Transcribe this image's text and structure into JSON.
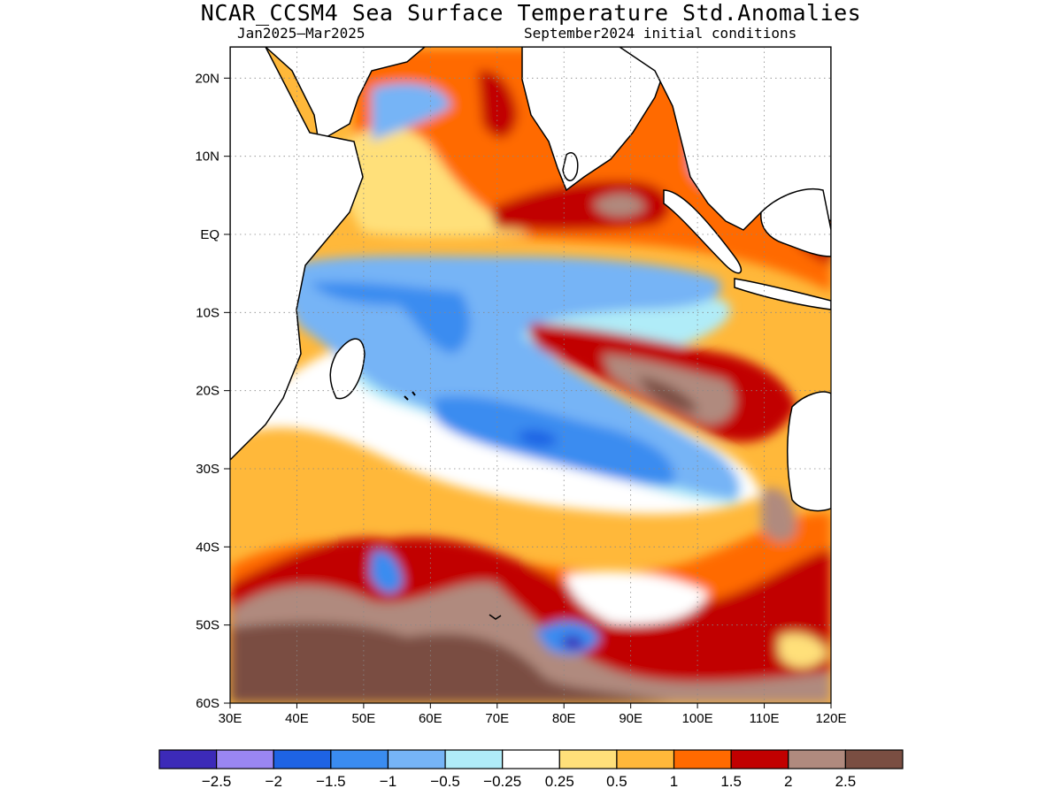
{
  "header": {
    "title": "NCAR_CCSM4 Sea Surface Temperature Std.Anomalies",
    "period": "Jan2025–Mar2025",
    "init": "September2024 initial conditions"
  },
  "map": {
    "lon_range": [
      30,
      120
    ],
    "lat_range": [
      -60,
      24
    ],
    "lat_ticks": [
      {
        "value": 20,
        "label": "20N"
      },
      {
        "value": 10,
        "label": "10N"
      },
      {
        "value": 0,
        "label": "EQ"
      },
      {
        "value": -10,
        "label": "10S"
      },
      {
        "value": -20,
        "label": "20S"
      },
      {
        "value": -30,
        "label": "30S"
      },
      {
        "value": -40,
        "label": "40S"
      },
      {
        "value": -50,
        "label": "50S"
      },
      {
        "value": -60,
        "label": "60S"
      }
    ],
    "lon_ticks": [
      {
        "value": 30,
        "label": "30E"
      },
      {
        "value": 40,
        "label": "40E"
      },
      {
        "value": 50,
        "label": "50E"
      },
      {
        "value": 60,
        "label": "60E"
      },
      {
        "value": 70,
        "label": "70E"
      },
      {
        "value": 80,
        "label": "80E"
      },
      {
        "value": 90,
        "label": "90E"
      },
      {
        "value": 100,
        "label": "100E"
      },
      {
        "value": 110,
        "label": "110E"
      },
      {
        "value": 120,
        "label": "120E"
      }
    ],
    "grid": "dotted",
    "land_color": "#ffffff",
    "coastline_color": "#000000"
  },
  "colorbar": {
    "colors": [
      "#3c2ab8",
      "#9a86f2",
      "#1e63e4",
      "#3a8cf0",
      "#76b4f6",
      "#b0ecf8",
      "#ffffff",
      "#ffe07a",
      "#ffb83a",
      "#ff6a00",
      "#c10000",
      "#b08a7e",
      "#7a4e42"
    ],
    "labels": [
      "−2.5",
      "−2",
      "−1.5",
      "−1",
      "−0.5",
      "−0.25",
      "0.25",
      "0.5",
      "1",
      "1.5",
      "2",
      "2.5"
    ]
  }
}
